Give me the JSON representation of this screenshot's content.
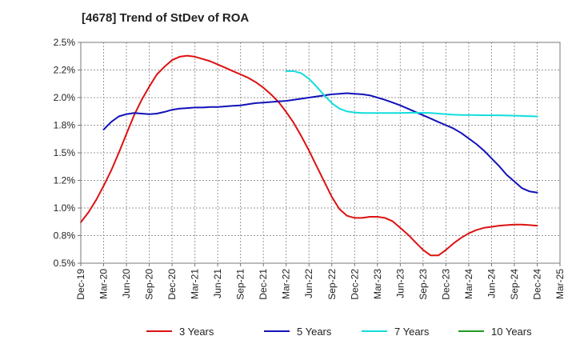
{
  "chart_data": {
    "type": "line",
    "title": "[4678]  Trend of StDev of ROA",
    "xlabel": "",
    "ylabel": "",
    "ylim": [
      0.5,
      2.5
    ],
    "y_ticks": [
      0.5,
      0.75,
      1.0,
      1.25,
      1.5,
      1.75,
      2.0,
      2.25,
      2.5
    ],
    "y_tick_labels": [
      "0.5%",
      "0.8%",
      "1.0%",
      "1.2%",
      "1.5%",
      "1.8%",
      "2.0%",
      "2.2%",
      "2.5%"
    ],
    "x_tick_labels": [
      "Dec-19",
      "Mar-20",
      "Jun-20",
      "Sep-20",
      "Dec-20",
      "Mar-21",
      "Jun-21",
      "Sep-21",
      "Dec-21",
      "Mar-22",
      "Jun-22",
      "Sep-22",
      "Dec-22",
      "Mar-23",
      "Jun-23",
      "Sep-23",
      "Dec-23",
      "Mar-24",
      "Jun-24",
      "Sep-24",
      "Dec-24",
      "Mar-25"
    ],
    "grid": true,
    "legend_position": "bottom",
    "series": [
      {
        "name": "3 Years",
        "color": "#dd1111",
        "x": [
          "Dec-19",
          "Jan-20",
          "Feb-20",
          "Mar-20",
          "Apr-20",
          "May-20",
          "Jun-20",
          "Jul-20",
          "Aug-20",
          "Sep-20",
          "Oct-20",
          "Nov-20",
          "Dec-20",
          "Jan-21",
          "Feb-21",
          "Mar-21",
          "Apr-21",
          "May-21",
          "Jun-21",
          "Jul-21",
          "Aug-21",
          "Sep-21",
          "Oct-21",
          "Nov-21",
          "Dec-21",
          "Jan-22",
          "Feb-22",
          "Mar-22",
          "Apr-22",
          "May-22",
          "Jun-22",
          "Jul-22",
          "Aug-22",
          "Sep-22",
          "Oct-22",
          "Nov-22",
          "Dec-22",
          "Jan-23",
          "Feb-23",
          "Mar-23",
          "Apr-23",
          "May-23",
          "Jun-23",
          "Jul-23",
          "Aug-23",
          "Sep-23",
          "Oct-23",
          "Nov-23",
          "Dec-23",
          "Jan-24",
          "Feb-24",
          "Mar-24",
          "Apr-24",
          "May-24",
          "Jun-24",
          "Jul-24",
          "Aug-24",
          "Sep-24",
          "Oct-24",
          "Nov-24",
          "Dec-24"
        ],
        "values": [
          0.87,
          0.96,
          1.07,
          1.2,
          1.34,
          1.5,
          1.67,
          1.84,
          1.98,
          2.1,
          2.21,
          2.28,
          2.34,
          2.37,
          2.38,
          2.37,
          2.35,
          2.33,
          2.3,
          2.27,
          2.24,
          2.21,
          2.18,
          2.14,
          2.09,
          2.03,
          1.96,
          1.87,
          1.77,
          1.65,
          1.52,
          1.38,
          1.24,
          1.1,
          0.99,
          0.93,
          0.91,
          0.91,
          0.92,
          0.92,
          0.91,
          0.88,
          0.82,
          0.76,
          0.69,
          0.62,
          0.57,
          0.57,
          0.62,
          0.68,
          0.73,
          0.77,
          0.8,
          0.82,
          0.83,
          0.84,
          0.845,
          0.85,
          0.85,
          0.845,
          0.84
        ]
      },
      {
        "name": "5 Years",
        "color": "#1111bb",
        "x": [
          "Mar-20",
          "Apr-20",
          "May-20",
          "Jun-20",
          "Jul-20",
          "Aug-20",
          "Sep-20",
          "Oct-20",
          "Nov-20",
          "Dec-20",
          "Jan-21",
          "Feb-21",
          "Mar-21",
          "Apr-21",
          "May-21",
          "Jun-21",
          "Jul-21",
          "Aug-21",
          "Sep-21",
          "Oct-21",
          "Nov-21",
          "Dec-21",
          "Jan-22",
          "Feb-22",
          "Mar-22",
          "Apr-22",
          "May-22",
          "Jun-22",
          "Jul-22",
          "Aug-22",
          "Sep-22",
          "Oct-22",
          "Nov-22",
          "Dec-22",
          "Jan-23",
          "Feb-23",
          "Mar-23",
          "Apr-23",
          "May-23",
          "Jun-23",
          "Jul-23",
          "Aug-23",
          "Sep-23",
          "Oct-23",
          "Nov-23",
          "Dec-23",
          "Jan-24",
          "Feb-24",
          "Mar-24",
          "Apr-24",
          "May-24",
          "Jun-24",
          "Jul-24",
          "Aug-24",
          "Sep-24",
          "Oct-24",
          "Nov-24",
          "Dec-24"
        ],
        "values": [
          1.71,
          1.78,
          1.83,
          1.85,
          1.86,
          1.855,
          1.85,
          1.855,
          1.87,
          1.89,
          1.9,
          1.905,
          1.91,
          1.91,
          1.915,
          1.915,
          1.92,
          1.925,
          1.93,
          1.94,
          1.95,
          1.955,
          1.96,
          1.965,
          1.97,
          1.98,
          1.99,
          2.0,
          2.01,
          2.02,
          2.03,
          2.035,
          2.04,
          2.035,
          2.03,
          2.02,
          2.0,
          1.98,
          1.955,
          1.93,
          1.9,
          1.87,
          1.84,
          1.81,
          1.78,
          1.75,
          1.72,
          1.68,
          1.63,
          1.58,
          1.52,
          1.45,
          1.38,
          1.3,
          1.24,
          1.18,
          1.15,
          1.14
        ]
      },
      {
        "name": "7 Years",
        "color": "#11dddd",
        "x": [
          "Mar-22",
          "Apr-22",
          "May-22",
          "Jun-22",
          "Jul-22",
          "Aug-22",
          "Sep-22",
          "Oct-22",
          "Nov-22",
          "Dec-22",
          "Jan-23",
          "Feb-23",
          "Mar-23",
          "Apr-23",
          "May-23",
          "Jun-23",
          "Jul-23",
          "Aug-23",
          "Sep-23",
          "Oct-23",
          "Nov-23",
          "Dec-23",
          "Jan-24",
          "Feb-24",
          "Mar-24",
          "Apr-24",
          "May-24",
          "Jun-24",
          "Jul-24",
          "Aug-24",
          "Sep-24",
          "Oct-24",
          "Nov-24",
          "Dec-24"
        ],
        "values": [
          2.24,
          2.24,
          2.22,
          2.17,
          2.1,
          2.02,
          1.95,
          1.9,
          1.875,
          1.865,
          1.86,
          1.86,
          1.86,
          1.86,
          1.86,
          1.86,
          1.862,
          1.863,
          1.862,
          1.86,
          1.855,
          1.85,
          1.845,
          1.843,
          1.842,
          1.841,
          1.84,
          1.84,
          1.84,
          1.838,
          1.836,
          1.834,
          1.832,
          1.83
        ]
      },
      {
        "name": "10 Years",
        "color": "#229922",
        "x": [],
        "values": []
      }
    ]
  }
}
